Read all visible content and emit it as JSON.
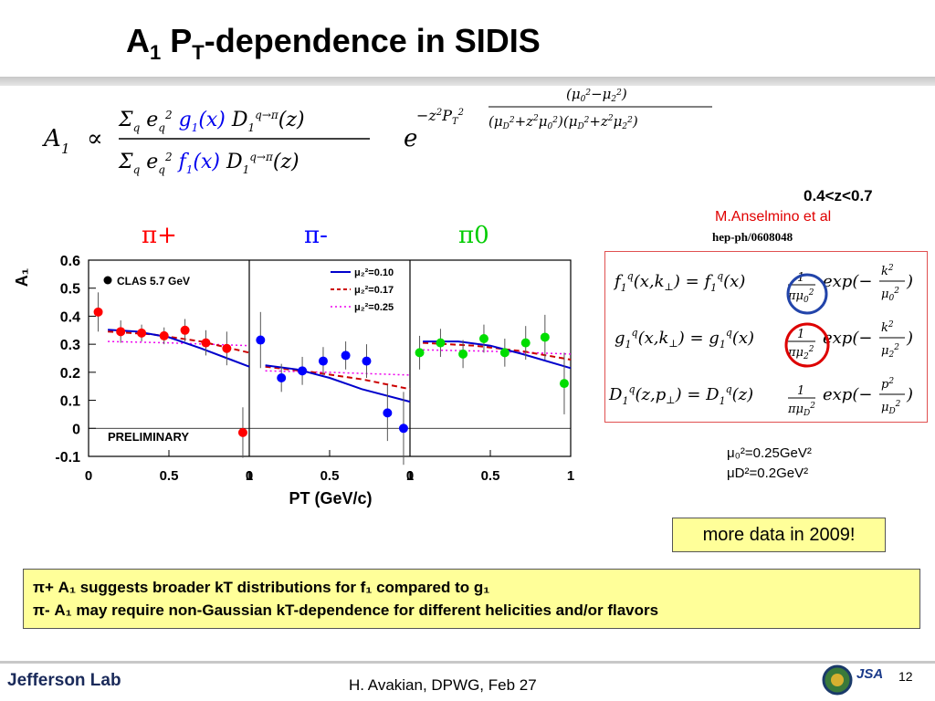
{
  "slide": {
    "title_main": "A",
    "title_sub1": "1",
    "title_p": " P",
    "title_sub2": "T",
    "title_rest": "-dependence in SIDIS"
  },
  "formula": {
    "lhs": "A",
    "lhs_sub": "1",
    "relation": "∝"
  },
  "citation": {
    "z_range": "0.4<z<0.7",
    "author": "M.Anselmino et al",
    "reference": "hep-ph/0608048"
  },
  "params": {
    "mu0": "μ₀²=0.25GeV²",
    "muD": "μD²=0.2GeV²"
  },
  "note": "more data in 2009!",
  "summary": {
    "line1": "π+ A₁ suggests  broader kT distributions for f₁ compared to g₁",
    "line2": "π- A₁ may require non-Gaussian  kT-dependence for different helicities and/or flavors"
  },
  "footer": {
    "logo": "Jefferson Lab",
    "text": "H. Avakian, DPWG, Feb 27",
    "page": "12",
    "jsa": "JSA"
  },
  "colors": {
    "pi_plus": "#ff0000",
    "pi_minus": "#0000ff",
    "pi_zero": "#00dd00",
    "curve_blue": "#0000cc",
    "curve_red": "#cc0000",
    "curve_magenta": "#ee00ee"
  },
  "chart_data": {
    "type": "scatter",
    "ylabel": "A₁",
    "xlabel": "PT (GeV/c)",
    "ylim": [
      -0.1,
      0.6
    ],
    "yticks": [
      "0.6",
      "0.5",
      "0.4",
      "0.3",
      "0.2",
      "0.1",
      "0",
      "-0.1"
    ],
    "xticks": [
      "0",
      "0.5",
      "1"
    ],
    "legend_data": "CLAS 5.7 GeV",
    "legend_curves": [
      "μ₂²=0.10",
      "μ₂²=0.17",
      "μ₂²=0.25"
    ],
    "preliminary": "PRELIMINARY",
    "panels": [
      {
        "label": "π+",
        "points": [
          [
            0.06,
            0.415
          ],
          [
            0.2,
            0.345
          ],
          [
            0.33,
            0.34
          ],
          [
            0.47,
            0.33
          ],
          [
            0.6,
            0.35
          ],
          [
            0.73,
            0.305
          ],
          [
            0.86,
            0.285
          ],
          [
            0.96,
            -0.015
          ]
        ],
        "errors": [
          0.07,
          0.04,
          0.03,
          0.03,
          0.04,
          0.045,
          0.06,
          0.09
        ],
        "curves": {
          "blue": [
            [
              0.12,
              0.352
            ],
            [
              0.3,
              0.345
            ],
            [
              0.5,
              0.325
            ],
            [
              0.7,
              0.285
            ],
            [
              1.0,
              0.22
            ]
          ],
          "red": [
            [
              0.12,
              0.345
            ],
            [
              0.4,
              0.335
            ],
            [
              0.7,
              0.31
            ],
            [
              1.0,
              0.27
            ]
          ],
          "magenta": [
            [
              0.12,
              0.31
            ],
            [
              0.5,
              0.305
            ],
            [
              1.0,
              0.295
            ]
          ]
        }
      },
      {
        "label": "π-",
        "points": [
          [
            0.07,
            0.315
          ],
          [
            0.2,
            0.18
          ],
          [
            0.33,
            0.205
          ],
          [
            0.46,
            0.24
          ],
          [
            0.6,
            0.26
          ],
          [
            0.73,
            0.24
          ],
          [
            0.86,
            0.055
          ],
          [
            0.96,
            0.0
          ]
        ],
        "errors": [
          0.1,
          0.05,
          0.05,
          0.05,
          0.05,
          0.06,
          0.1,
          0.13
        ],
        "curves": {
          "blue": [
            [
              0.1,
              0.225
            ],
            [
              0.3,
              0.21
            ],
            [
              0.5,
              0.18
            ],
            [
              0.7,
              0.14
            ],
            [
              1.0,
              0.095
            ]
          ],
          "red": [
            [
              0.1,
              0.22
            ],
            [
              0.4,
              0.2
            ],
            [
              0.7,
              0.175
            ],
            [
              1.0,
              0.14
            ]
          ],
          "magenta": [
            [
              0.1,
              0.205
            ],
            [
              0.5,
              0.2
            ],
            [
              1.0,
              0.19
            ]
          ]
        }
      },
      {
        "label": "π0",
        "points": [
          [
            0.06,
            0.27
          ],
          [
            0.19,
            0.305
          ],
          [
            0.33,
            0.265
          ],
          [
            0.46,
            0.32
          ],
          [
            0.59,
            0.27
          ],
          [
            0.72,
            0.305
          ],
          [
            0.84,
            0.325
          ],
          [
            0.96,
            0.16
          ]
        ],
        "errors": [
          0.06,
          0.05,
          0.05,
          0.05,
          0.05,
          0.06,
          0.08,
          0.11
        ],
        "curves": {
          "blue": [
            [
              0.08,
              0.31
            ],
            [
              0.3,
              0.31
            ],
            [
              0.5,
              0.295
            ],
            [
              0.7,
              0.265
            ],
            [
              1.0,
              0.215
            ]
          ],
          "red": [
            [
              0.08,
              0.305
            ],
            [
              0.4,
              0.295
            ],
            [
              0.7,
              0.275
            ],
            [
              1.0,
              0.245
            ]
          ],
          "magenta": [
            [
              0.08,
              0.28
            ],
            [
              0.5,
              0.275
            ],
            [
              1.0,
              0.265
            ]
          ]
        }
      }
    ]
  }
}
